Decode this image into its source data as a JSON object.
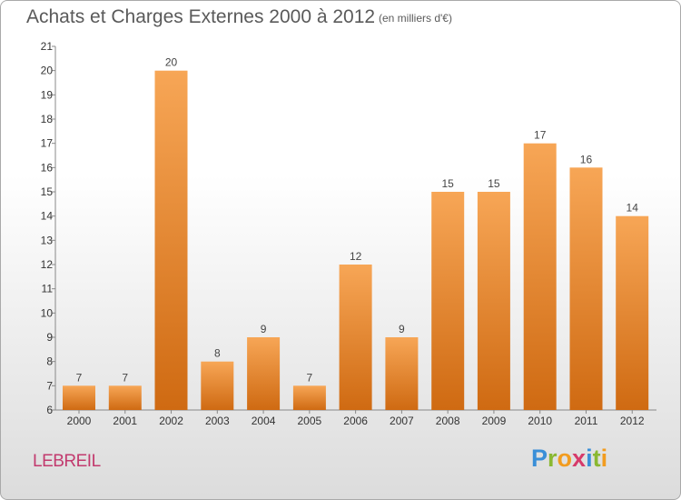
{
  "header": {
    "title": "Achats et Charges Externes 2000 à 2012",
    "unit_note": "(en milliers d'€)"
  },
  "footer": {
    "commune": "LEBREIL",
    "brand_letters": [
      "P",
      "r",
      "o",
      "x",
      "i",
      "t",
      "i"
    ],
    "brand_colors": [
      "#3a8fd8",
      "#8ab832",
      "#f29c1f",
      "#d63a6a",
      "#3a8fd8",
      "#8ab832",
      "#f29c1f"
    ]
  },
  "chart_data": {
    "type": "bar",
    "categories": [
      "2000",
      "2001",
      "2002",
      "2003",
      "2004",
      "2005",
      "2006",
      "2007",
      "2008",
      "2009",
      "2010",
      "2011",
      "2012"
    ],
    "values": [
      7,
      7,
      20,
      8,
      9,
      7,
      12,
      9,
      15,
      15,
      17,
      16,
      14
    ],
    "data_labels": [
      "7",
      "7",
      "20",
      "8",
      "9",
      "7",
      "12",
      "9",
      "15",
      "15",
      "17",
      "16",
      "14"
    ],
    "ylim": [
      6,
      21
    ],
    "yticks": [
      6,
      7,
      8,
      9,
      10,
      11,
      12,
      13,
      14,
      15,
      16,
      17,
      18,
      19,
      20,
      21
    ],
    "title": "Achats et Charges Externes 2000 à 2012",
    "xlabel": "",
    "ylabel": "",
    "grid": false,
    "bar_color": "#f08a2c"
  }
}
